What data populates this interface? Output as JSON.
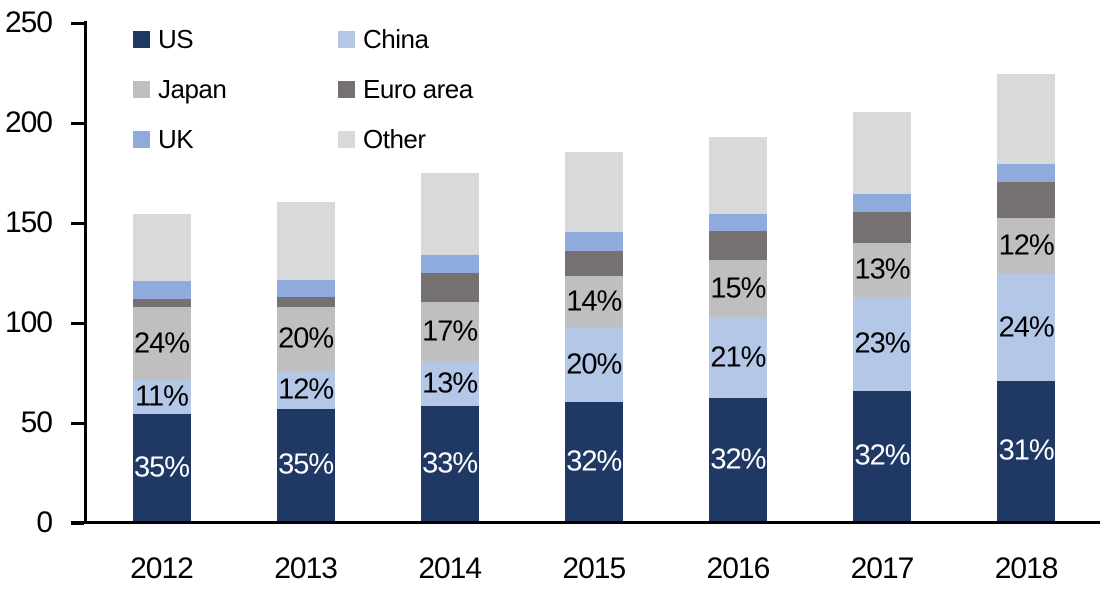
{
  "chart_data": {
    "type": "bar",
    "subtype": "stacked-column",
    "title": "",
    "xlabel": "",
    "ylabel": "",
    "x": [
      "2012",
      "2013",
      "2014",
      "2015",
      "2016",
      "2017",
      "2018"
    ],
    "y_axis": {
      "min": 0,
      "max": 250,
      "ticks": [
        0,
        50,
        100,
        150,
        200,
        250
      ]
    },
    "gridlines": false,
    "legend_position": "top-left",
    "axis_color": "#000000",
    "series": [
      {
        "name": "US",
        "color": "#1f3864",
        "label_color": "#ffffff",
        "values": [
          53.5,
          56,
          57.5,
          59.5,
          61.5,
          65,
          70
        ],
        "labels": [
          "35%",
          "35%",
          "33%",
          "32%",
          "32%",
          "32%",
          "31%"
        ]
      },
      {
        "name": "China",
        "color": "#b4c7e7",
        "label_color": "#000000",
        "values": [
          17,
          19,
          22.5,
          37,
          40.5,
          47,
          53.5
        ],
        "labels": [
          "11%",
          "12%",
          "13%",
          "20%",
          "21%",
          "23%",
          "24%"
        ]
      },
      {
        "name": "Japan",
        "color": "#bfbfbf",
        "label_color": "#000000",
        "values": [
          36.5,
          32,
          29.5,
          26,
          28.5,
          27,
          28
        ],
        "labels": [
          "24%",
          "20%",
          "17%",
          "14%",
          "15%",
          "13%",
          "12%"
        ]
      },
      {
        "name": "Euro area",
        "color": "#767171",
        "values": [
          4,
          5,
          14.5,
          12.5,
          14.5,
          15.5,
          18
        ],
        "labels": null
      },
      {
        "name": "UK",
        "color": "#8faadc",
        "values": [
          9,
          8.5,
          9,
          9.5,
          8.5,
          9,
          9
        ],
        "labels": null
      },
      {
        "name": "Other",
        "color": "#d9d9d9",
        "values": [
          33.5,
          39,
          41,
          40,
          38.5,
          41,
          45
        ],
        "labels": null
      }
    ]
  }
}
